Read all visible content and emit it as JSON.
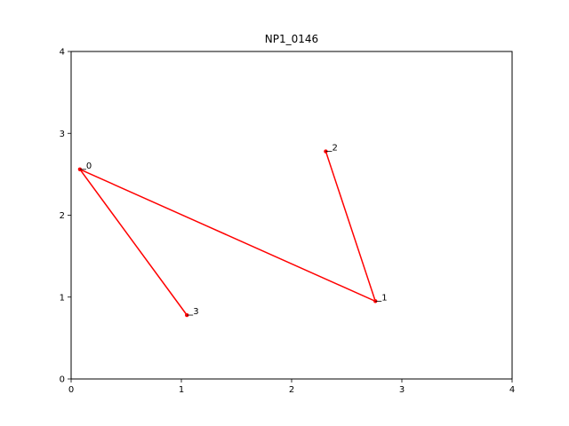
{
  "chart_data": {
    "type": "line",
    "title": "NP1_0146",
    "xlabel": "",
    "ylabel": "",
    "xlim": [
      0,
      4
    ],
    "ylim": [
      0,
      4
    ],
    "xticks": [
      "0",
      "1",
      "2",
      "3",
      "4"
    ],
    "yticks": [
      "0",
      "1",
      "2",
      "3",
      "4"
    ],
    "grid": false,
    "series": [
      {
        "color": "#ff0000",
        "points": [
          {
            "label": "0",
            "x": 0.08,
            "y": 2.56
          },
          {
            "label": "1",
            "x": 2.76,
            "y": 0.95
          },
          {
            "label": "2",
            "x": 2.31,
            "y": 2.78
          },
          {
            "label": "3",
            "x": 1.05,
            "y": 0.78
          }
        ],
        "path_order": [
          "2",
          "1",
          "0",
          "3"
        ]
      }
    ]
  }
}
